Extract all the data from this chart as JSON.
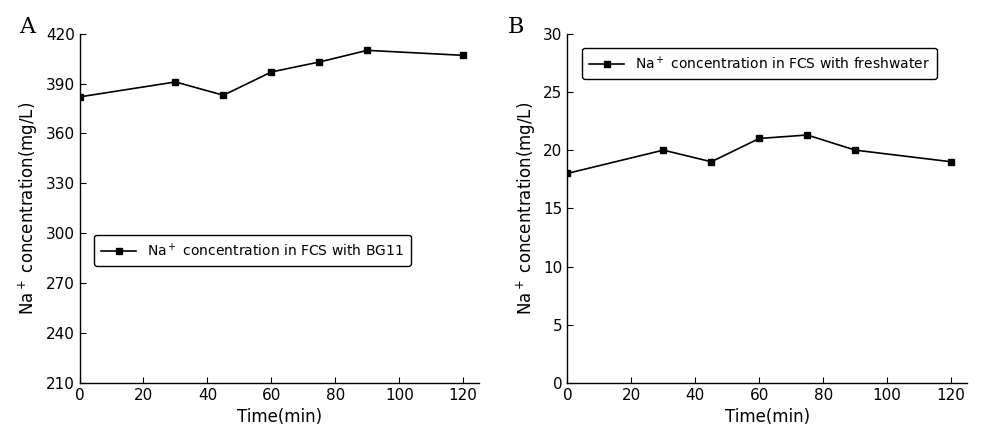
{
  "panel_A": {
    "label": "A",
    "x": [
      0,
      30,
      45,
      60,
      75,
      90,
      120
    ],
    "y": [
      382,
      391,
      383,
      397,
      403,
      410,
      407
    ],
    "xlabel": "Time(min)",
    "ylabel": "Na$^+$ concentration(mg/L)",
    "legend": "Na$^+$ concentration in FCS with BG11",
    "ylim": [
      210,
      420
    ],
    "yticks": [
      210,
      240,
      270,
      300,
      330,
      360,
      390,
      420
    ],
    "xticks": [
      0,
      20,
      40,
      60,
      80,
      100,
      120
    ],
    "xlim": [
      0,
      125
    ]
  },
  "panel_B": {
    "label": "B",
    "x": [
      0,
      30,
      45,
      60,
      75,
      90,
      120
    ],
    "y": [
      18.0,
      20.0,
      19.0,
      21.0,
      21.3,
      20.0,
      19.0
    ],
    "xlabel": "Time(min)",
    "ylabel": "Na$^+$ concentration(mg/L)",
    "legend": "Na$^+$ concentration in FCS with freshwater",
    "ylim": [
      0,
      30
    ],
    "yticks": [
      0,
      5,
      10,
      15,
      20,
      25,
      30
    ],
    "xticks": [
      0,
      20,
      40,
      60,
      80,
      100,
      120
    ],
    "xlim": [
      0,
      125
    ]
  },
  "line_color": "#000000",
  "marker": "s",
  "marker_size": 4.5,
  "marker_facecolor": "#000000",
  "line_width": 1.2,
  "font_size": 11,
  "label_font_size": 12,
  "legend_font_size": 10,
  "panel_label_font_size": 16,
  "background_color": "#ffffff"
}
